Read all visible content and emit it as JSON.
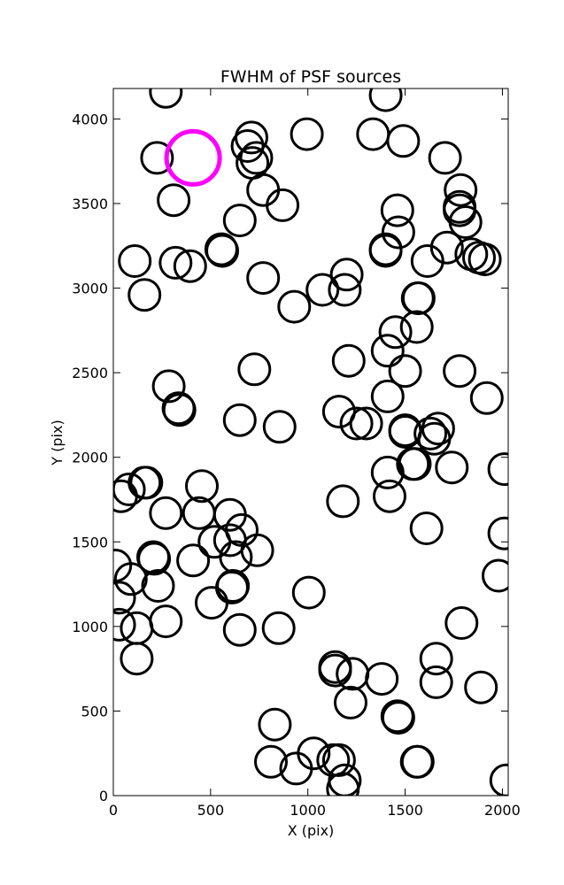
{
  "chart_data": {
    "type": "scatter",
    "title": "FWHM of PSF sources",
    "xlabel": "X (pix)",
    "ylabel": "Y (pix)",
    "xlim": [
      0,
      2030
    ],
    "ylim": [
      0,
      4180
    ],
    "xticks": [
      0,
      500,
      1000,
      1500,
      2000
    ],
    "yticks": [
      0,
      500,
      1000,
      1500,
      2000,
      2500,
      3000,
      3500,
      4000
    ],
    "grid": false,
    "marker": "open circle",
    "series": [
      {
        "color": "#000000",
        "points": [
          [
            270,
            4160
          ],
          [
            1400,
            4140
          ],
          [
            995,
            3910
          ],
          [
            1335,
            3910
          ],
          [
            1490,
            3870
          ],
          [
            710,
            3890
          ],
          [
            690,
            3840
          ],
          [
            225,
            3770
          ],
          [
            735,
            3770
          ],
          [
            715,
            3740
          ],
          [
            1705,
            3770
          ],
          [
            1785,
            3580
          ],
          [
            1780,
            3480
          ],
          [
            1780,
            3460
          ],
          [
            1810,
            3390
          ],
          [
            310,
            3520
          ],
          [
            770,
            3580
          ],
          [
            870,
            3490
          ],
          [
            650,
            3400
          ],
          [
            1460,
            3460
          ],
          [
            1465,
            3330
          ],
          [
            1400,
            3230
          ],
          [
            1400,
            3220
          ],
          [
            1715,
            3240
          ],
          [
            110,
            3160
          ],
          [
            320,
            3150
          ],
          [
            395,
            3130
          ],
          [
            560,
            3220
          ],
          [
            555,
            3230
          ],
          [
            770,
            3060
          ],
          [
            1615,
            3160
          ],
          [
            1840,
            3200
          ],
          [
            1880,
            3180
          ],
          [
            1910,
            3170
          ],
          [
            160,
            2960
          ],
          [
            930,
            2890
          ],
          [
            1075,
            2990
          ],
          [
            1200,
            3080
          ],
          [
            1190,
            2990
          ],
          [
            1570,
            2940
          ],
          [
            1565,
            2940
          ],
          [
            1450,
            2740
          ],
          [
            1560,
            2770
          ],
          [
            1410,
            2630
          ],
          [
            1500,
            2510
          ],
          [
            1210,
            2570
          ],
          [
            725,
            2520
          ],
          [
            1780,
            2510
          ],
          [
            285,
            2420
          ],
          [
            335,
            2290
          ],
          [
            340,
            2280
          ],
          [
            650,
            2220
          ],
          [
            855,
            2180
          ],
          [
            1160,
            2270
          ],
          [
            1250,
            2200
          ],
          [
            1300,
            2200
          ],
          [
            1410,
            2360
          ],
          [
            1920,
            2350
          ],
          [
            1500,
            2160
          ],
          [
            1500,
            2150
          ],
          [
            1630,
            2140
          ],
          [
            1670,
            2170
          ],
          [
            1650,
            2110
          ],
          [
            1540,
            1960
          ],
          [
            1550,
            1960
          ],
          [
            1740,
            1940
          ],
          [
            2010,
            1930
          ],
          [
            40,
            1770
          ],
          [
            80,
            1810
          ],
          [
            160,
            1850
          ],
          [
            170,
            1850
          ],
          [
            455,
            1830
          ],
          [
            1410,
            1910
          ],
          [
            1420,
            1770
          ],
          [
            1180,
            1740
          ],
          [
            270,
            1670
          ],
          [
            440,
            1670
          ],
          [
            600,
            1660
          ],
          [
            660,
            1570
          ],
          [
            740,
            1450
          ],
          [
            1610,
            1580
          ],
          [
            2010,
            1550
          ],
          [
            10,
            1360
          ],
          [
            205,
            1410
          ],
          [
            210,
            1400
          ],
          [
            410,
            1390
          ],
          [
            520,
            1500
          ],
          [
            600,
            1510
          ],
          [
            630,
            1410
          ],
          [
            610,
            1230
          ],
          [
            615,
            1240
          ],
          [
            90,
            1280
          ],
          [
            230,
            1240
          ],
          [
            30,
            1170
          ],
          [
            505,
            1140
          ],
          [
            1005,
            1200
          ],
          [
            1980,
            1300
          ],
          [
            30,
            1010
          ],
          [
            120,
            990
          ],
          [
            270,
            1030
          ],
          [
            650,
            980
          ],
          [
            850,
            990
          ],
          [
            1790,
            1020
          ],
          [
            120,
            810
          ],
          [
            1140,
            760
          ],
          [
            1140,
            740
          ],
          [
            1230,
            720
          ],
          [
            1380,
            690
          ],
          [
            1660,
            810
          ],
          [
            1660,
            670
          ],
          [
            1890,
            640
          ],
          [
            1220,
            550
          ],
          [
            1460,
            470
          ],
          [
            1465,
            460
          ],
          [
            830,
            420
          ],
          [
            810,
            200
          ],
          [
            940,
            160
          ],
          [
            1030,
            250
          ],
          [
            1130,
            210
          ],
          [
            1160,
            210
          ],
          [
            1190,
            90
          ],
          [
            1180,
            40
          ],
          [
            1560,
            200
          ],
          [
            1565,
            200
          ],
          [
            2020,
            90
          ]
        ]
      },
      {
        "color": "#ff00ff",
        "points": [
          [
            410,
            3770
          ]
        ]
      }
    ]
  }
}
